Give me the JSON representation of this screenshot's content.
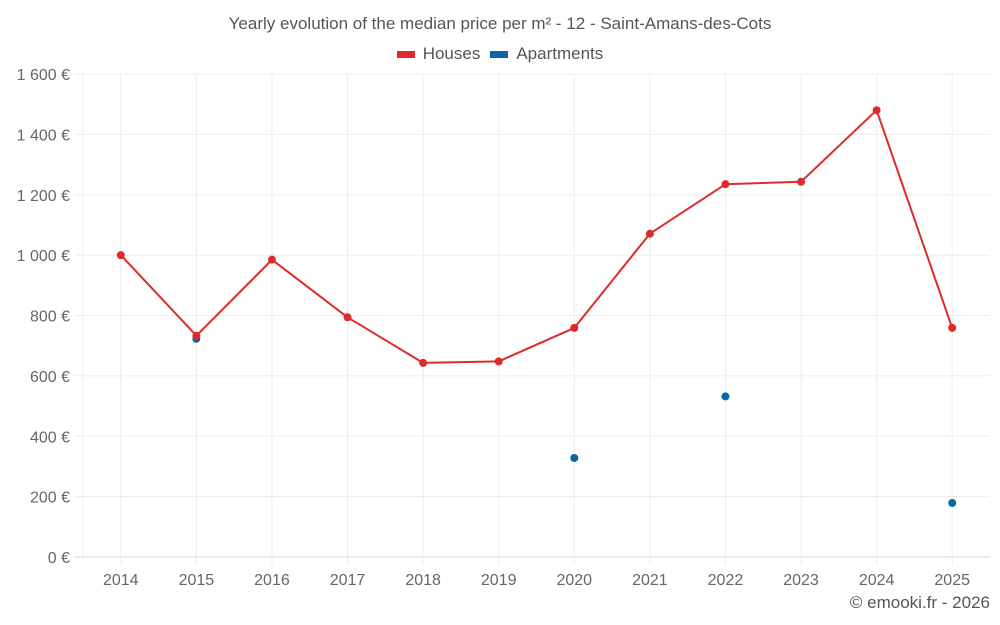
{
  "chart_data": {
    "type": "line",
    "title": "Yearly evolution of the median price per m² - 12 - Saint-Amans-des-Cots",
    "xlabel": "",
    "ylabel": "",
    "x": [
      "2014",
      "2015",
      "2016",
      "2017",
      "2018",
      "2019",
      "2020",
      "2021",
      "2022",
      "2023",
      "2024",
      "2025"
    ],
    "ylim": [
      0,
      1600
    ],
    "yticks": [
      0,
      200,
      400,
      600,
      800,
      1000,
      1200,
      1400,
      1600
    ],
    "ytick_labels": [
      "0 €",
      "200 €",
      "400 €",
      "600 €",
      "800 €",
      "1 000 €",
      "1 200 €",
      "1 400 €",
      "1 600 €"
    ],
    "grid": true,
    "legend_position": "top-center",
    "series": [
      {
        "name": "Houses",
        "color": "#dd2b2b",
        "show_line": true,
        "values": [
          1000,
          733,
          985,
          794,
          643,
          648,
          759,
          1071,
          1235,
          1243,
          1480,
          759
        ]
      },
      {
        "name": "Apartments",
        "color": "#0a67a3",
        "show_line": false,
        "values": [
          null,
          723,
          null,
          null,
          null,
          null,
          328,
          null,
          532,
          null,
          null,
          179
        ]
      }
    ]
  },
  "legend": {
    "houses": "Houses",
    "apartments": "Apartments",
    "houses_color": "#dd2b2b",
    "apartments_color": "#0a67a3"
  },
  "credit": "© emooki.fr - 2026"
}
